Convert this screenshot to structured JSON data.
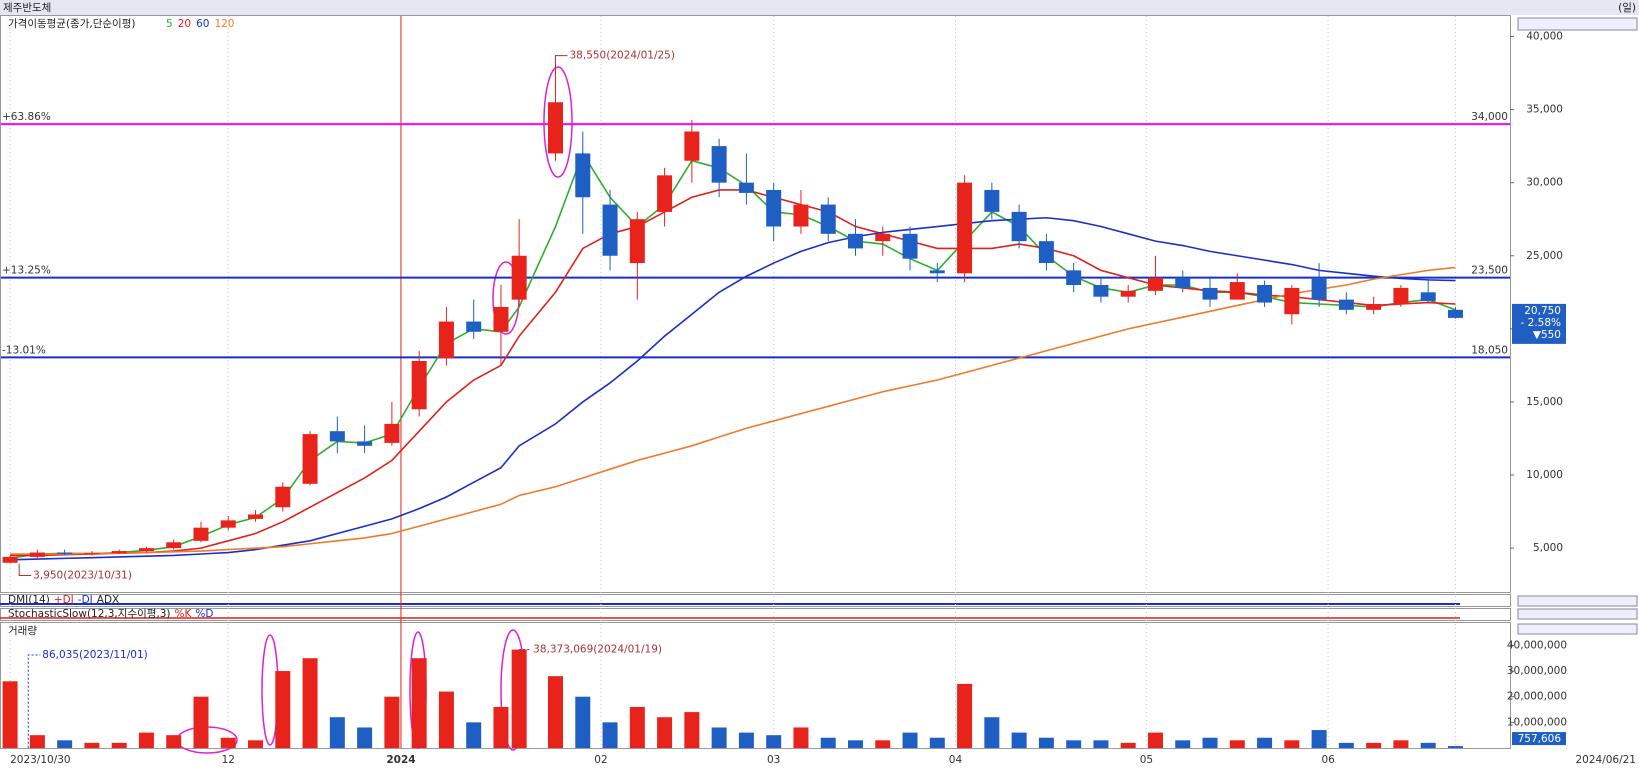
{
  "header": {
    "title": "제주반도체",
    "period": "(일)"
  },
  "panels": [
    {
      "title": "DMI(14)",
      "lines": [
        "+DI",
        "-DI",
        "ADX"
      ]
    },
    {
      "title": "StochasticSlow(12,3,지수이평,3)",
      "lines": [
        "%K",
        "%D"
      ]
    }
  ],
  "chart_data": [
    {
      "type": "candlestick",
      "title": "가격이동평균(종가,단순이평)",
      "x": [
        0,
        3,
        6,
        9,
        12,
        15,
        18,
        21,
        24,
        27,
        30,
        33,
        36,
        39,
        42,
        45,
        48,
        51,
        54,
        56,
        60,
        63,
        66,
        69,
        72,
        75,
        78,
        81,
        84,
        87,
        90,
        93,
        96,
        99,
        102,
        105,
        108,
        111,
        114,
        117,
        120,
        123,
        126,
        129,
        132,
        135,
        138,
        141,
        144,
        147,
        150,
        153,
        156,
        159
      ],
      "open": [
        4000,
        4400,
        4700,
        4600,
        4650,
        4800,
        5000,
        5500,
        6400,
        7000,
        7800,
        9400,
        13000,
        12300,
        12200,
        14500,
        18000,
        20500,
        19800,
        22000,
        32000,
        32000,
        28500,
        24500,
        28000,
        31500,
        32500,
        30000,
        29500,
        27000,
        28500,
        26500,
        26000,
        26500,
        24000,
        23800,
        29500,
        28000,
        26000,
        24000,
        23000,
        22200,
        22600,
        23500,
        22800,
        22000,
        23000,
        21000,
        23500,
        22000,
        21300,
        21700,
        22500,
        21300
      ],
      "high": [
        4500,
        4900,
        4900,
        4800,
        4900,
        5100,
        5600,
        6800,
        7200,
        7600,
        9500,
        13000,
        14000,
        13400,
        15000,
        18500,
        21500,
        22000,
        23000,
        27500,
        38550,
        33500,
        29500,
        28000,
        31000,
        34300,
        33000,
        32000,
        30000,
        29500,
        29000,
        27500,
        27000,
        27000,
        24500,
        30500,
        30000,
        28500,
        26500,
        24500,
        23500,
        23000,
        25000,
        24000,
        23500,
        23800,
        23300,
        23000,
        24500,
        22500,
        22200,
        23000,
        23500,
        21500
      ],
      "low": [
        3950,
        4300,
        4500,
        4500,
        4600,
        4700,
        4900,
        5400,
        6200,
        6800,
        7500,
        9300,
        11500,
        11500,
        12000,
        14000,
        17500,
        19300,
        17500,
        21500,
        31500,
        26500,
        24000,
        22000,
        27000,
        30000,
        29000,
        28500,
        26000,
        26500,
        26000,
        25000,
        25000,
        24000,
        23200,
        23200,
        27500,
        25500,
        24000,
        22500,
        21800,
        21800,
        22300,
        22500,
        21500,
        22000,
        21500,
        20300,
        21500,
        21000,
        21000,
        21500,
        21800,
        20700
      ],
      "close": [
        4400,
        4700,
        4600,
        4650,
        4800,
        5000,
        5400,
        6400,
        6900,
        7300,
        9200,
        12800,
        12300,
        12000,
        13500,
        17800,
        20500,
        19800,
        21500,
        25000,
        35500,
        29000,
        25000,
        27500,
        30500,
        33500,
        30000,
        29300,
        27000,
        28500,
        26500,
        25500,
        26500,
        24800,
        23800,
        30000,
        28000,
        26000,
        24500,
        23000,
        22200,
        22600,
        23500,
        22800,
        22000,
        23200,
        21800,
        22800,
        22000,
        21300,
        21700,
        22800,
        21900,
        20750
      ],
      "up_color": "#e8231b",
      "down_color": "#1f5fc4",
      "series": [
        {
          "name": "5",
          "color": "#2fae2f",
          "values": [
            4300,
            4600,
            4650,
            4620,
            4700,
            4850,
            5100,
            5800,
            6600,
            7100,
            8400,
            11000,
            12300,
            12200,
            12800,
            16000,
            19000,
            20000,
            19800,
            21500,
            27000,
            32000,
            29000,
            27000,
            28500,
            31500,
            31000,
            29800,
            28000,
            27800,
            27000,
            26000,
            25800,
            24800,
            24000,
            26000,
            28000,
            27000,
            25000,
            23600,
            22800,
            22500,
            23000,
            23000,
            22500,
            22500,
            22200,
            21800,
            21700,
            21600,
            21500,
            21800,
            22000,
            21300
          ]
        },
        {
          "name": "20",
          "color": "#e0201a",
          "values": [
            4500,
            4500,
            4550,
            4600,
            4650,
            4700,
            4800,
            5000,
            5500,
            6000,
            6800,
            7800,
            8800,
            9800,
            11000,
            13000,
            15000,
            16500,
            17500,
            19500,
            22500,
            25500,
            26500,
            27000,
            28000,
            29000,
            29500,
            29500,
            29000,
            28500,
            28000,
            27000,
            26500,
            26000,
            25500,
            25500,
            25500,
            25800,
            25500,
            25000,
            24000,
            23500,
            23000,
            22800,
            22600,
            22500,
            22300,
            22200,
            22000,
            21800,
            21600,
            21700,
            21800,
            21700
          ]
        },
        {
          "name": "60",
          "color": "#1a2fc8",
          "values": [
            4200,
            4250,
            4300,
            4350,
            4400,
            4450,
            4500,
            4600,
            4700,
            4900,
            5200,
            5500,
            6000,
            6500,
            7000,
            7700,
            8500,
            9500,
            10500,
            12000,
            13500,
            15000,
            16300,
            17800,
            19500,
            21000,
            22500,
            23600,
            24500,
            25300,
            25900,
            26300,
            26600,
            26800,
            27000,
            27200,
            27400,
            27500,
            27600,
            27400,
            27000,
            26500,
            26000,
            25700,
            25300,
            25000,
            24700,
            24400,
            24000,
            23800,
            23600,
            23450,
            23350,
            23300
          ]
        },
        {
          "name": "120",
          "color": "#f07a2a",
          "values": [
            4600,
            4600,
            4600,
            4650,
            4650,
            4700,
            4750,
            4800,
            4900,
            5000,
            5100,
            5300,
            5500,
            5700,
            6000,
            6500,
            7000,
            7500,
            8000,
            8600,
            9200,
            9800,
            10400,
            11000,
            11500,
            12000,
            12600,
            13200,
            13700,
            14200,
            14700,
            15200,
            15700,
            16100,
            16500,
            17000,
            17500,
            18000,
            18500,
            19000,
            19500,
            20000,
            20400,
            20800,
            21200,
            21600,
            22000,
            22400,
            22700,
            23000,
            23400,
            23700,
            24000,
            24200
          ]
        }
      ],
      "xlim": [
        -1,
        165
      ],
      "xticks": [
        {
          "value": 0,
          "label": "2023/10/30"
        },
        {
          "value": 24,
          "label": "12"
        },
        {
          "value": 43,
          "label": "2024"
        },
        {
          "value": 65,
          "label": "02"
        },
        {
          "value": 84,
          "label": "03"
        },
        {
          "value": 104,
          "label": "04"
        },
        {
          "value": 125,
          "label": "05"
        },
        {
          "value": 145,
          "label": "06"
        },
        {
          "value": 159,
          "label": "2024/06/21"
        }
      ],
      "ylim": [
        2000,
        41400
      ],
      "yticks": [
        {
          "value": 5000,
          "label": "5,000"
        },
        {
          "value": 10000,
          "label": "10,000"
        },
        {
          "value": 15000,
          "label": "15,000"
        },
        {
          "value": 20000,
          "label": "20,000"
        },
        {
          "value": 25000,
          "label": "25,000"
        },
        {
          "value": 30000,
          "label": "30,000"
        },
        {
          "value": 35000,
          "label": "35,000"
        },
        {
          "value": 40000,
          "label": "40,000"
        }
      ],
      "hlines": [
        {
          "value": 34000,
          "label": "34,000",
          "pct": "+63.86%",
          "color": "#ff00ff"
        },
        {
          "value": 23500,
          "label": "23,500",
          "pct": "+13.25%",
          "color": "#1a2fc8"
        },
        {
          "value": 18050,
          "label": "18,050",
          "pct": "-13.01%",
          "color": "#1a2fc8"
        }
      ],
      "vline": 43,
      "annotations": [
        {
          "text": "38,550(2024/01/25)",
          "x": 60,
          "y": 38550
        },
        {
          "text": "3,950(2023/10/31)",
          "x": 1,
          "y": 3950
        }
      ],
      "last": {
        "price": "20,750",
        "change": "- 2.58%",
        "diff": "▼550"
      }
    },
    {
      "type": "bar",
      "title": "거래량",
      "x": [
        0,
        3,
        6,
        9,
        12,
        15,
        18,
        21,
        24,
        27,
        30,
        33,
        36,
        39,
        42,
        45,
        48,
        51,
        54,
        56,
        60,
        63,
        66,
        69,
        72,
        75,
        78,
        81,
        84,
        87,
        90,
        93,
        96,
        99,
        102,
        105,
        108,
        111,
        114,
        117,
        120,
        123,
        126,
        129,
        132,
        135,
        138,
        141,
        144,
        147,
        150,
        153,
        156,
        159
      ],
      "values": [
        26000000,
        5000000,
        3000000,
        2000000,
        2000000,
        6000000,
        5000000,
        20000000,
        4000000,
        3000000,
        30000000,
        35000000,
        12000000,
        8000000,
        20000000,
        35000000,
        22000000,
        10000000,
        16000000,
        38373069,
        28000000,
        20000000,
        10000000,
        16000000,
        12000000,
        14000000,
        8000000,
        6000000,
        5000000,
        8000000,
        4000000,
        3000000,
        3000000,
        6000000,
        4000000,
        25000000,
        12000000,
        6000000,
        4000000,
        3000000,
        3000000,
        2000000,
        6000000,
        3000000,
        4000000,
        3000000,
        4000000,
        3000000,
        7000000,
        2000000,
        2000000,
        3000000,
        2000000,
        757606
      ],
      "ylim": [
        0,
        46000000
      ],
      "yticks": [
        {
          "value": 10000000,
          "label": "10,000,000"
        },
        {
          "value": 20000000,
          "label": "20,000,000"
        },
        {
          "value": 30000000,
          "label": "30,000,000"
        },
        {
          "value": 40000000,
          "label": "40,000,000"
        }
      ],
      "annotations": [
        {
          "text": "86,035(2023/11/01)",
          "x": 2,
          "y": 86035
        },
        {
          "text": "38,373,069(2024/01/19)",
          "x": 56,
          "y": 38373069
        }
      ],
      "last_label": "757,606"
    }
  ]
}
